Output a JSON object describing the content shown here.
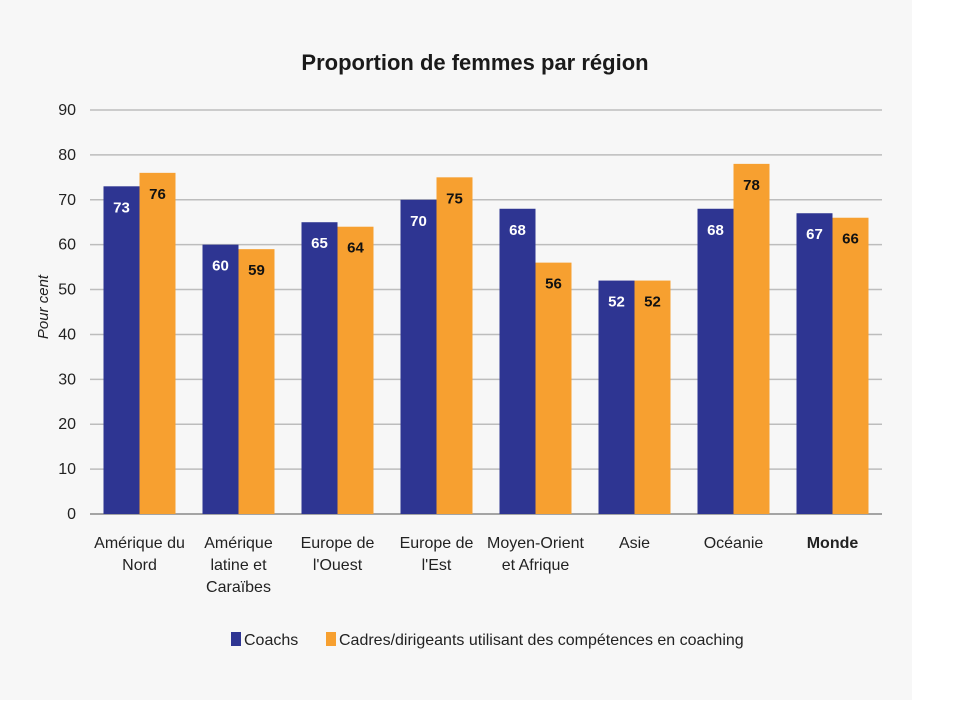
{
  "chart_data": {
    "type": "bar",
    "title": "Proportion de femmes par région",
    "ylabel": "Pour cent",
    "xlabel": "",
    "ylim": [
      0,
      90
    ],
    "yticks": [
      0,
      10,
      20,
      30,
      40,
      50,
      60,
      70,
      80,
      90
    ],
    "grid": true,
    "legend_position": "bottom",
    "categories": [
      [
        "Amérique du",
        "Nord"
      ],
      [
        "Amérique",
        "latine et",
        "Caraïbes"
      ],
      [
        "Europe de",
        "l'Ouest"
      ],
      [
        "Europe de",
        "l'Est"
      ],
      [
        "Moyen-Orient",
        "et Afrique"
      ],
      [
        "Asie"
      ],
      [
        "Océanie"
      ],
      [
        "Monde"
      ]
    ],
    "bold_categories": [
      "Monde"
    ],
    "series": [
      {
        "name": "Coachs",
        "color": "#2e3592",
        "label_color": "#ffffff",
        "values": [
          73,
          60,
          65,
          70,
          68,
          52,
          68,
          67
        ]
      },
      {
        "name": "Cadres/dirigeants utilisant des compétences en coaching",
        "color": "#f7a030",
        "label_color": "#111111",
        "values": [
          76,
          59,
          64,
          75,
          56,
          52,
          78,
          66
        ]
      }
    ]
  }
}
